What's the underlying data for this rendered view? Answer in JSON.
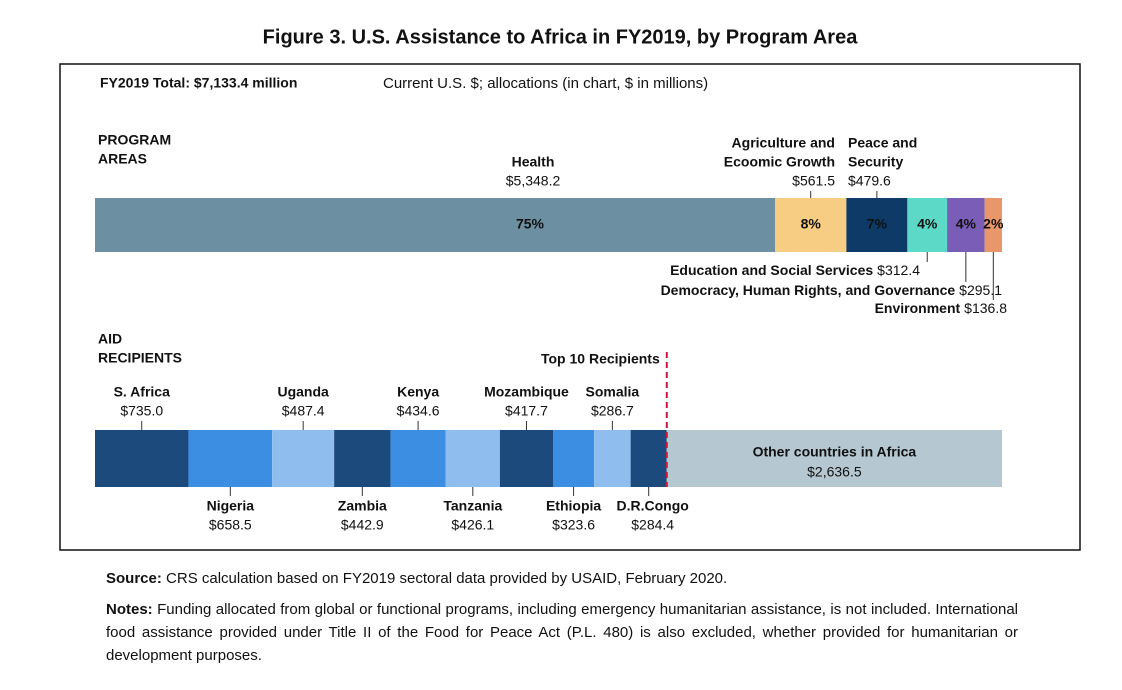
{
  "title": "Figure 3. U.S. Assistance to Africa in FY2019, by Program Area",
  "total": "FY2019 Total: $7,133.4 million",
  "units": "Current U.S. $; allocations (in chart, $ in millions)",
  "chart_data": [
    {
      "type": "stacked-bar",
      "title": [
        "PROGRAM",
        "AREAS"
      ],
      "series": [
        {
          "name": [
            "Health"
          ],
          "color": "#6d8fa2",
          "values": [
            5348.2
          ],
          "value_labels": [
            "$5,348.2"
          ],
          "share_label": "75%"
        },
        {
          "name": [
            "Agriculture and",
            "Ecoomic Growth"
          ],
          "color": "#f6cd82",
          "values": [
            561.5
          ],
          "value_labels": [
            "$561.5"
          ],
          "share_label": "8%"
        },
        {
          "name": [
            "Peace and",
            "Security"
          ],
          "color": "#0d3a67",
          "values": [
            479.6
          ],
          "value_labels": [
            "$479.6"
          ],
          "share_label": "7%"
        },
        {
          "name": [
            "Education and Social Services"
          ],
          "color": "#5dd9c7",
          "values": [
            312.4
          ],
          "value_labels": [
            "$312.4"
          ],
          "share_label": "4%"
        },
        {
          "name": [
            "Democracy, Human Rights, and Governance"
          ],
          "color": "#7a5db6",
          "values": [
            295.1
          ],
          "value_labels": [
            "$295.1"
          ],
          "share_label": "4%"
        },
        {
          "name": [
            "Environment"
          ],
          "color": "#e9966b",
          "values": [
            136.8
          ],
          "value_labels": [
            "$136.8"
          ],
          "share_label": "2%"
        }
      ]
    },
    {
      "type": "stacked-bar",
      "title": [
        "AID",
        "RECIPIENTS"
      ],
      "annotation": "Top 10 Recipients",
      "series": [
        {
          "name": "S. Africa",
          "color": "#1c4a7d",
          "values": [
            735.0
          ],
          "value_labels": [
            "$735.0"
          ]
        },
        {
          "name": "Nigeria",
          "color": "#3b8ee2",
          "values": [
            658.5
          ],
          "value_labels": [
            "$658.5"
          ]
        },
        {
          "name": "Uganda",
          "color": "#8fbdee",
          "values": [
            487.4
          ],
          "value_labels": [
            "$487.4"
          ]
        },
        {
          "name": "Zambia",
          "color": "#1c4a7d",
          "values": [
            442.9
          ],
          "value_labels": [
            "$442.9"
          ]
        },
        {
          "name": "Kenya",
          "color": "#3b8ee2",
          "values": [
            434.6
          ],
          "value_labels": [
            "$434.6"
          ]
        },
        {
          "name": "Tanzania",
          "color": "#8fbdee",
          "values": [
            426.1
          ],
          "value_labels": [
            "$426.1"
          ]
        },
        {
          "name": "Mozambique",
          "color": "#1c4a7d",
          "values": [
            417.7
          ],
          "value_labels": [
            "$417.7"
          ]
        },
        {
          "name": "Ethiopia",
          "color": "#3b8ee2",
          "values": [
            323.6
          ],
          "value_labels": [
            "$323.6"
          ]
        },
        {
          "name": "Somalia",
          "color": "#8fbdee",
          "values": [
            286.7
          ],
          "value_labels": [
            "$286.7"
          ]
        },
        {
          "name": "D.R.Congo",
          "color": "#1c4a7d",
          "values": [
            284.4
          ],
          "value_labels": [
            "$284.4"
          ]
        },
        {
          "name": "Other countries in Africa",
          "color": "#b5c8d1",
          "values": [
            2636.5
          ],
          "value_labels": [
            "$2,636.5"
          ]
        }
      ]
    }
  ],
  "source_label": "Source:",
  "source": "CRS calculation based on FY2019 sectoral data provided by USAID, February 2020.",
  "notes_label": "Notes:",
  "notes": "Funding allocated from global or functional programs, including emergency humanitarian assistance, is not included. International food assistance provided under Title II of the Food for Peace Act (P.L. 480) is also excluded, whether provided for humanitarian or development purposes."
}
